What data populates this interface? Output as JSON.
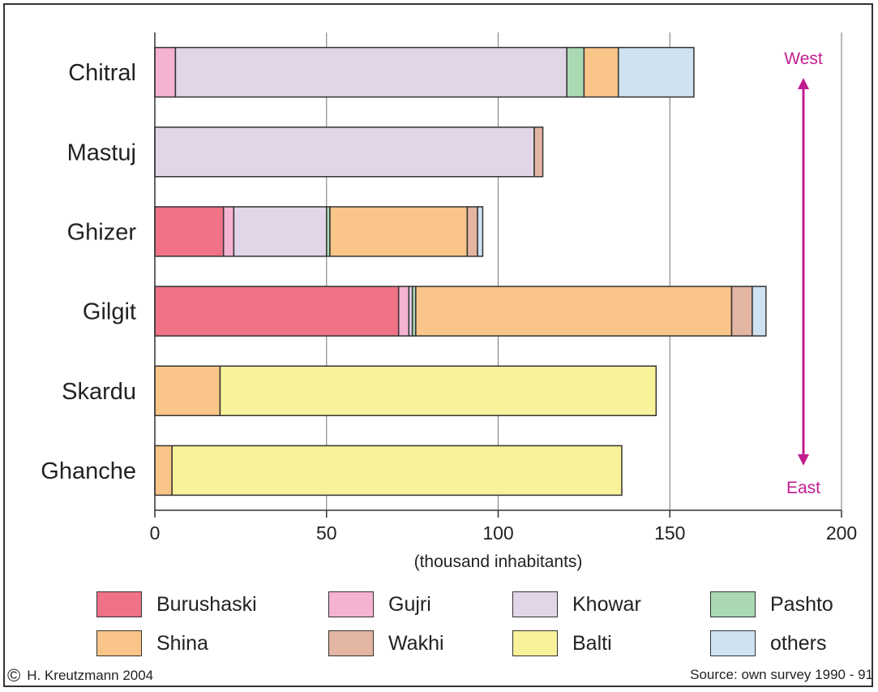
{
  "chart_data": {
    "type": "bar",
    "orientation": "horizontal",
    "stacked": true,
    "categories": [
      "Chitral",
      "Mastuj",
      "Ghizer",
      "Gilgit",
      "Skardu",
      "Ghanche"
    ],
    "series": [
      {
        "name": "Burushaski",
        "color": "#f07286",
        "values": [
          0,
          0,
          20,
          71,
          0,
          0
        ]
      },
      {
        "name": "Gujri",
        "color": "#f4b3d1",
        "values": [
          6,
          0,
          3,
          3,
          0,
          0
        ]
      },
      {
        "name": "Khowar",
        "color": "#e2d5e8",
        "values": [
          114,
          110.5,
          27,
          1,
          0,
          0
        ]
      },
      {
        "name": "Pashto",
        "color": "#a9d8b3",
        "values": [
          5,
          0,
          1,
          1,
          0,
          0
        ]
      },
      {
        "name": "Shina",
        "color": "#f9c588",
        "values": [
          10,
          0,
          40,
          92,
          19,
          5
        ]
      },
      {
        "name": "Wakhi",
        "color": "#e3b5a3",
        "values": [
          0,
          2.5,
          3,
          6,
          0,
          0
        ]
      },
      {
        "name": "Balti",
        "color": "#f8f29a",
        "values": [
          0,
          0,
          0,
          0,
          127,
          131
        ]
      },
      {
        "name": "others",
        "color": "#cfe2f2",
        "values": [
          22,
          0,
          1.5,
          4,
          0,
          0
        ]
      }
    ],
    "xlim": [
      0,
      200
    ],
    "xticks": [
      "0",
      "50",
      "100",
      "150",
      "200"
    ],
    "xlabel": "(thousand inhabitants)",
    "grid": "vertical",
    "legend_position": "bottom",
    "annotations": {
      "top": "West",
      "bottom": "East",
      "color": "#c21d8f"
    }
  },
  "footer": {
    "copyright_symbol": "©",
    "copyright": "H. Kreutzmann 2004",
    "source": "Source: own survey 1990 - 91"
  }
}
